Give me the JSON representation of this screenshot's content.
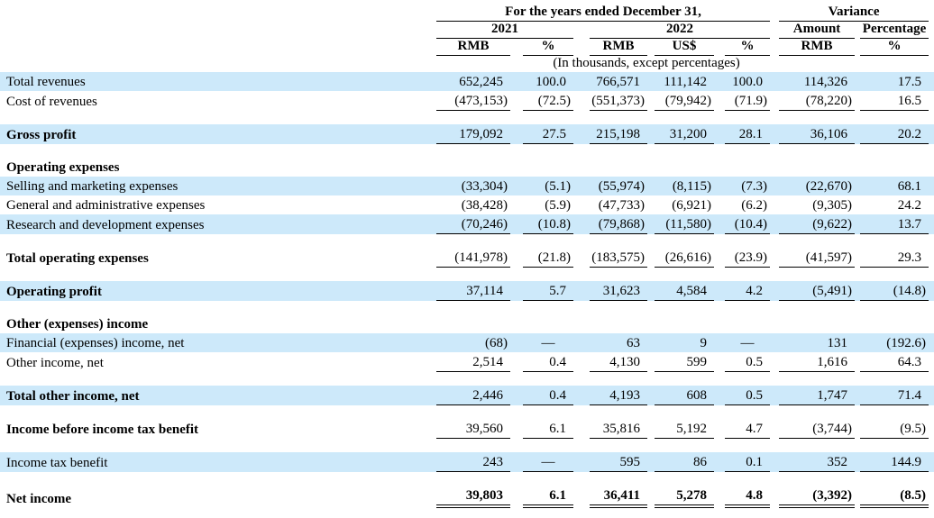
{
  "table": {
    "highlight_color": "#cde9fa",
    "header": {
      "years_group": "For the years ended December 31,",
      "variance_group": "Variance",
      "year_2021": "2021",
      "year_2022": "2022",
      "amount": "Amount",
      "percentage": "Percentage",
      "units": [
        "RMB",
        "%",
        "RMB",
        "US$",
        "%",
        "RMB",
        "%"
      ],
      "note": "(In thousands, except percentages)"
    },
    "rows": [
      {
        "type": "data",
        "label": "Total revenues",
        "values": [
          "652,245",
          "100.0",
          "766,571",
          "111,142",
          "100.0",
          "114,326",
          "17.5"
        ],
        "highlight": true,
        "bold": false,
        "rule": "none"
      },
      {
        "type": "data",
        "label": "Cost of revenues",
        "values": [
          "(473,153)",
          "(72.5)",
          "(551,373)",
          "(79,942)",
          "(71.9)",
          "(78,220)",
          "16.5"
        ],
        "highlight": false,
        "bold": false,
        "rule": "single"
      },
      {
        "type": "spacer"
      },
      {
        "type": "data",
        "label": "Gross profit",
        "values": [
          "179,092",
          "27.5",
          "215,198",
          "31,200",
          "28.1",
          "36,106",
          "20.2"
        ],
        "highlight": true,
        "bold": true,
        "rule": "single"
      },
      {
        "type": "spacer"
      },
      {
        "type": "section",
        "label": "Operating expenses",
        "highlight": false,
        "bold": true
      },
      {
        "type": "data",
        "label": "Selling and marketing expenses",
        "values": [
          "(33,304)",
          "(5.1)",
          "(55,974)",
          "(8,115)",
          "(7.3)",
          "(22,670)",
          "68.1"
        ],
        "highlight": true,
        "bold": false,
        "rule": "none"
      },
      {
        "type": "data",
        "label": "General and administrative expenses",
        "values": [
          "(38,428)",
          "(5.9)",
          "(47,733)",
          "(6,921)",
          "(6.2)",
          "(9,305)",
          "24.2"
        ],
        "highlight": false,
        "bold": false,
        "rule": "none"
      },
      {
        "type": "data",
        "label": "Research and development expenses",
        "values": [
          "(70,246)",
          "(10.8)",
          "(79,868)",
          "(11,580)",
          "(10.4)",
          "(9,622)",
          "13.7"
        ],
        "highlight": true,
        "bold": false,
        "rule": "single"
      },
      {
        "type": "spacer"
      },
      {
        "type": "data",
        "label": "Total operating expenses",
        "values": [
          "(141,978)",
          "(21.8)",
          "(183,575)",
          "(26,616)",
          "(23.9)",
          "(41,597)",
          "29.3"
        ],
        "highlight": false,
        "bold": true,
        "rule": "single"
      },
      {
        "type": "spacer"
      },
      {
        "type": "data",
        "label": "Operating profit",
        "values": [
          "37,114",
          "5.7",
          "31,623",
          "4,584",
          "4.2",
          "(5,491)",
          "(14.8)"
        ],
        "highlight": true,
        "bold": true,
        "rule": "single"
      },
      {
        "type": "spacer"
      },
      {
        "type": "section",
        "label": "Other (expenses) income",
        "highlight": false,
        "bold": true
      },
      {
        "type": "data",
        "label": "Financial (expenses) income, net",
        "values": [
          "(68)",
          "—",
          "63",
          "9",
          "—",
          "131",
          "(192.6)"
        ],
        "highlight": true,
        "bold": false,
        "rule": "none"
      },
      {
        "type": "data",
        "label": "Other income, net",
        "values": [
          "2,514",
          "0.4",
          "4,130",
          "599",
          "0.5",
          "1,616",
          "64.3"
        ],
        "highlight": false,
        "bold": false,
        "rule": "single"
      },
      {
        "type": "spacer"
      },
      {
        "type": "data",
        "label": "Total other income, net",
        "values": [
          "2,446",
          "0.4",
          "4,193",
          "608",
          "0.5",
          "1,747",
          "71.4"
        ],
        "highlight": true,
        "bold": true,
        "rule": "single"
      },
      {
        "type": "spacer"
      },
      {
        "type": "data",
        "label": "Income before income tax benefit",
        "values": [
          "39,560",
          "6.1",
          "35,816",
          "5,192",
          "4.7",
          "(3,744)",
          "(9.5)"
        ],
        "highlight": false,
        "bold": true,
        "rule": "single"
      },
      {
        "type": "spacer"
      },
      {
        "type": "data",
        "label": "Income tax benefit",
        "values": [
          "243",
          "—",
          "595",
          "86",
          "0.1",
          "352",
          "144.9"
        ],
        "highlight": true,
        "bold": false,
        "rule": "single"
      },
      {
        "type": "spacer"
      },
      {
        "type": "data",
        "label": "Net income",
        "values": [
          "39,803",
          "6.1",
          "36,411",
          "5,278",
          "4.8",
          "(3,392)",
          "(8.5)"
        ],
        "highlight": false,
        "bold": true,
        "bold_values": true,
        "rule": "double"
      }
    ]
  }
}
